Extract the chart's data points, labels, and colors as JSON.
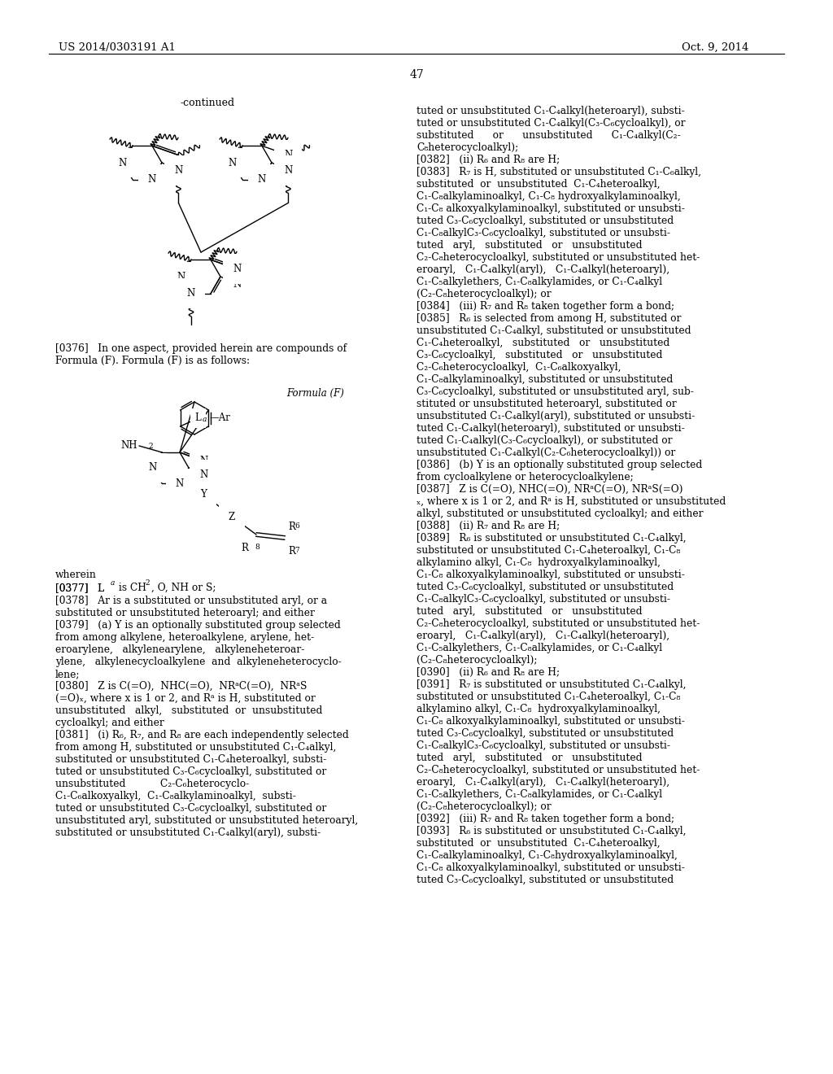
{
  "page_number": "47",
  "patent_number": "US 2014/0303191 A1",
  "patent_date": "Oct. 9, 2014",
  "continued_label": "-continued",
  "formula_label": "Formula (F)",
  "wherein_text": "wherein",
  "left_col_texts": [
    "[0376]   In one aspect, provided herein are compounds of",
    "Formula (F). Formula (F) is as follows:"
  ],
  "para0377": "[0377]   L",
  "para0377b": " is CH",
  "para0377c": ", O, NH or S;",
  "para0378a": "[0378]   Ar is a substituted or unsubstituted aryl, or a",
  "para0378b": "substituted or unsubstituted heteroaryl; and either",
  "para0379a": "[0379]   (a) Y is an optionally substituted group selected",
  "para0379b": "from among alkylene, heteroalkylene, arylene, het-",
  "para0379c": "eroarylene,   alkylenearylene,   alkyleneheteroar-",
  "para0379d": "ylene,   alkylenecycloalkylene  and  alkyleneheterocyclo-",
  "para0379e": "lene;",
  "right_col_texts": [
    "tuted or unsubstituted C₁-C₄alkyl(heteroaryl), substi-",
    "tuted or unsubstituted C₁-C₄alkyl(C₃-C₆cycloalkyl), or",
    "substituted      or      unsubstituted      C₁-C₄alkyl(C₂-",
    "C₈heterocycloalkyl);",
    "[0382]   (ii) R₆ and R₈ are H;",
    "[0383]   R₇ is H, substituted or unsubstituted C₁-C₆alkyl,",
    "substituted  or  unsubstituted  C₁-C₄heteroalkyl,",
    "C₁-C₈alkylaminoalkyl, C₁-C₈ hydroxyalkylaminoalkyl,",
    "C₁-C₈ alkoxyalkylaminoalkyl, substituted or unsubsti-",
    "tuted C₃-C₆cycloalkyl, substituted or unsubstituted",
    "C₁-C₈alkylC₃-C₆cycloalkyl, substituted or unsubsti-",
    "tuted   aryl,   substituted   or   unsubstituted",
    "C₂-C₈heterocycloalkyl, substituted or unsubstituted het-",
    "eroaryl,   C₁-C₄alkyl(aryl),   C₁-C₄alkyl(heteroaryl),",
    "C₁-C₅alkylethers, C₁-C₈alkylamides, or C₁-C₄alkyl",
    "(C₂-C₈heterocycloalkyl); or",
    "[0384]   (iii) R₇ and R₈ taken together form a bond;",
    "[0385]   R₆ is selected from among H, substituted or",
    "unsubstituted C₁-C₄alkyl, substituted or unsubstituted",
    "C₁-C₄heteroalkyl,   substituted   or   unsubstituted",
    "C₃-C₆cycloalkyl,   substituted   or   unsubstituted",
    "C₂-C₆heterocycloalkyl,  C₁-C₆alkoxyalkyl,",
    "C₁-C₈alkylaminoalkyl, substituted or unsubstituted",
    "C₃-C₆cycloalkyl, substituted or unsubstituted aryl, sub-",
    "stituted or unsubstituted heteroaryl, substituted or",
    "unsubstituted C₁-C₄alkyl(aryl), substituted or unsubsti-",
    "tuted C₁-C₄alkyl(heteroaryl), substituted or unsubsti-",
    "tuted C₁-C₄alkyl(C₃-C₆cycloalkyl), or substituted or",
    "unsubstituted C₁-C₄alkyl(C₂-C₆heterocycloalkyl)) or",
    "[0386]   (b) Y is an optionally substituted group selected",
    "from cycloalkylene or heterocycloalkylene;",
    "[0387]   Z is C(=O), NHC(=O), NRᵃC(=O), NRᵃS(=O)",
    "ₓ, where x is 1 or 2, and Rᵃ is H, substituted or unsubstituted",
    "alkyl, substituted or unsubstituted cycloalkyl; and either",
    "[0388]   (ii) R₇ and R₈ are H;",
    "[0389]   R₆ is substituted or unsubstituted C₁-C₄alkyl,",
    "substituted or unsubstituted C₁-C₄heteroalkyl, C₁-C₈",
    "alkylamino alkyl, C₁-C₈  hydroxyalkylaminoalkyl,",
    "C₁-C₈ alkoxyalkylaminoalkyl, substituted or unsubsti-",
    "tuted C₃-C₆cycloalkyl, substituted or unsubstituted",
    "C₁-C₈alkylC₃-C₆cycloalkyl, substituted or unsubsti-",
    "tuted   aryl,   substituted   or   unsubstituted",
    "C₂-C₈heterocycloalkyl, substituted or unsubstituted het-",
    "eroaryl,   C₁-C₄alkyl(aryl),   C₁-C₄alkyl(heteroaryl),",
    "C₁-C₅alkylethers, C₁-C₈alkylamides, or C₁-C₄alkyl",
    "(C₂-C₈heterocycloalkyl);",
    "[0390]   (ii) R₆ and R₈ are H;",
    "[0391]   R₇ is substituted or unsubstituted C₁-C₄alkyl,",
    "substituted or unsubstituted C₁-C₄heteroalkyl, C₁-C₈",
    "alkylamino alkyl, C₁-C₈  hydroxyalkylaminoalkyl,",
    "C₁-C₈ alkoxyalkylaminoalkyl, substituted or unsubsti-",
    "tuted C₃-C₆cycloalkyl, substituted or unsubstituted",
    "C₁-C₈alkylC₃-C₆cycloalkyl, substituted or unsubsti-",
    "tuted   aryl,   substituted   or   unsubstituted",
    "C₂-C₈heterocycloalkyl, substituted or unsubstituted het-",
    "eroaryl,   C₁-C₄alkyl(aryl),   C₁-C₄alkyl(heteroaryl),",
    "C₁-C₅alkylethers, C₁-C₈alkylamides, or C₁-C₄alkyl",
    "(C₂-C₈heterocycloalkyl); or",
    "[0392]   (iii) R₇ and R₈ taken together form a bond;",
    "[0393]   R₆ is substituted or unsubstituted C₁-C₄alkyl,",
    "substituted  or  unsubstituted  C₁-C₄heteroalkyl,",
    "C₁-C₈alkylaminoalkyl, C₁-C₈hydroxyalkylaminoalkyl,",
    "C₁-C₈ alkoxyalkylaminoalkyl, substituted or unsubsti-",
    "tuted C₃-C₆cycloalkyl, substituted or unsubstituted"
  ]
}
